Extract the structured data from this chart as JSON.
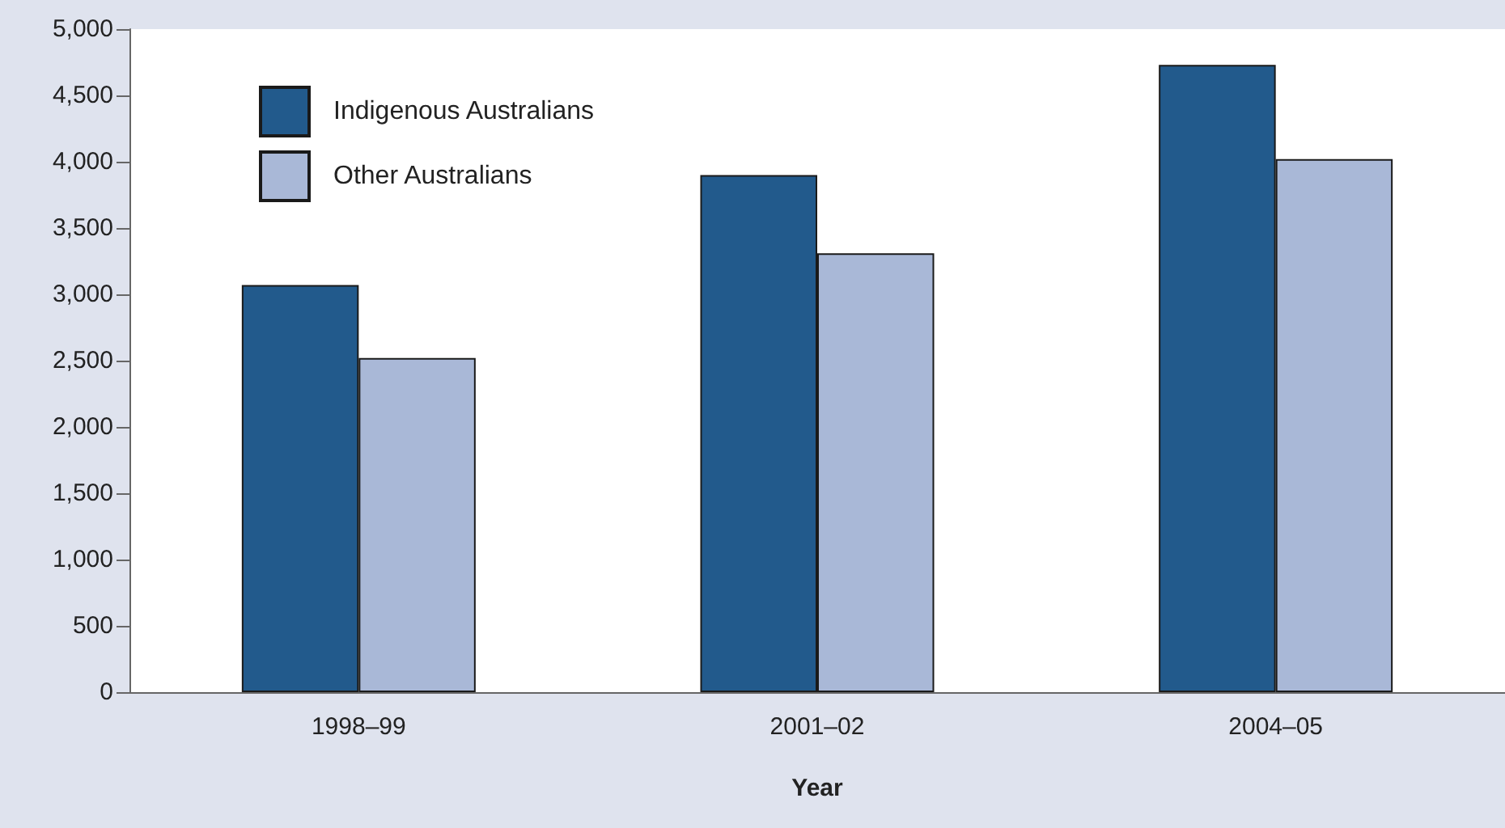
{
  "chart_data": {
    "type": "bar",
    "xlabel": "Year",
    "categories": [
      "1998–99",
      "2001–02",
      "2004–05"
    ],
    "series": [
      {
        "name": "Indigenous Australians",
        "color": "#225a8c",
        "values": [
          3070,
          3900,
          4730
        ]
      },
      {
        "name": "Other Australians",
        "color": "#a9b8d7",
        "values": [
          2520,
          3310,
          4020
        ]
      }
    ],
    "ylim": [
      0,
      5000
    ],
    "yticks": [
      0,
      500,
      {
        "value": 1000,
        "label": "1,000"
      },
      {
        "value": 1500,
        "label": "1,500"
      },
      {
        "value": 2000,
        "label": "2,000"
      },
      {
        "value": 2500,
        "label": "2,500"
      },
      {
        "value": 3000,
        "label": "3,000"
      },
      {
        "value": 3500,
        "label": "3,500"
      },
      {
        "value": 4000,
        "label": "4,000"
      },
      {
        "value": 4500,
        "label": "4,500"
      },
      {
        "value": 5000,
        "label": "5,000"
      }
    ],
    "grid": false,
    "legend": "top left"
  }
}
